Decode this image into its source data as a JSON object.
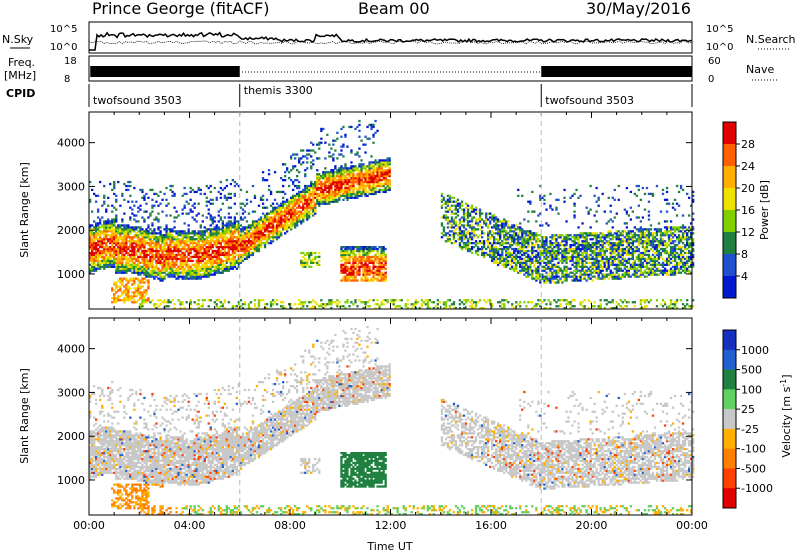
{
  "header": {
    "station": "Prince George (fitACF)",
    "beam": "Beam 00",
    "date": "30/May/2016"
  },
  "top_panels": {
    "nsky_label": "N.Sky",
    "nsky_ticks": [
      "10^5",
      "10^0"
    ],
    "nsearch_label": "N.Search",
    "nsearch_ticks": [
      "10^5",
      "10^0"
    ],
    "freq_label": [
      "Freq.",
      "[MHz]"
    ],
    "freq_ticks": [
      "18",
      "8"
    ],
    "nave_label": "Nave",
    "nave_ticks": [
      "60",
      "0"
    ],
    "cpid_label": "CPID",
    "cpid_segments": [
      {
        "name": "twofsound 3503",
        "start_hour": 0,
        "end_hour": 6
      },
      {
        "name": "themis 3300",
        "start_hour": 6,
        "end_hour": 18
      },
      {
        "name": "twofsound 3503",
        "start_hour": 18,
        "end_hour": 24
      }
    ]
  },
  "chart_data": [
    {
      "type": "heatmap",
      "name": "power",
      "ylabel": "Slant Range [km]",
      "yticks": [
        1000,
        2000,
        3000,
        4000
      ],
      "ylim": [
        200,
        4700
      ],
      "xlim": [
        0,
        24
      ],
      "colorbar_label": "Power [dB]",
      "colorbar_ticks": [
        "28",
        "24",
        "20",
        "16",
        "12",
        "8",
        "4"
      ],
      "colorbar_colors": [
        "#e00000",
        "#ff6000",
        "#ffb000",
        "#f0e000",
        "#80d000",
        "#208040",
        "#2050d0",
        "#0018d0"
      ]
    },
    {
      "type": "heatmap",
      "name": "velocity",
      "ylabel": "Slant Range [km]",
      "yticks": [
        1000,
        2000,
        3000,
        4000
      ],
      "ylim": [
        200,
        4700
      ],
      "xlim": [
        0,
        24
      ],
      "xlabel": "Time UT",
      "xticks": [
        "00:00",
        "04:00",
        "08:00",
        "12:00",
        "16:00",
        "20:00",
        "00:00"
      ],
      "colorbar_label": "Velocity [m s^-1]",
      "colorbar_ticks": [
        "1000",
        "500",
        "100",
        "25",
        "-25",
        "-100",
        "-500",
        "-1000"
      ],
      "colorbar_colors": [
        "#1830c0",
        "#2060d0",
        "#208040",
        "#60d060",
        "#c8c8c8",
        "#ffb000",
        "#ff8000",
        "#ff4000",
        "#e00000"
      ]
    }
  ]
}
